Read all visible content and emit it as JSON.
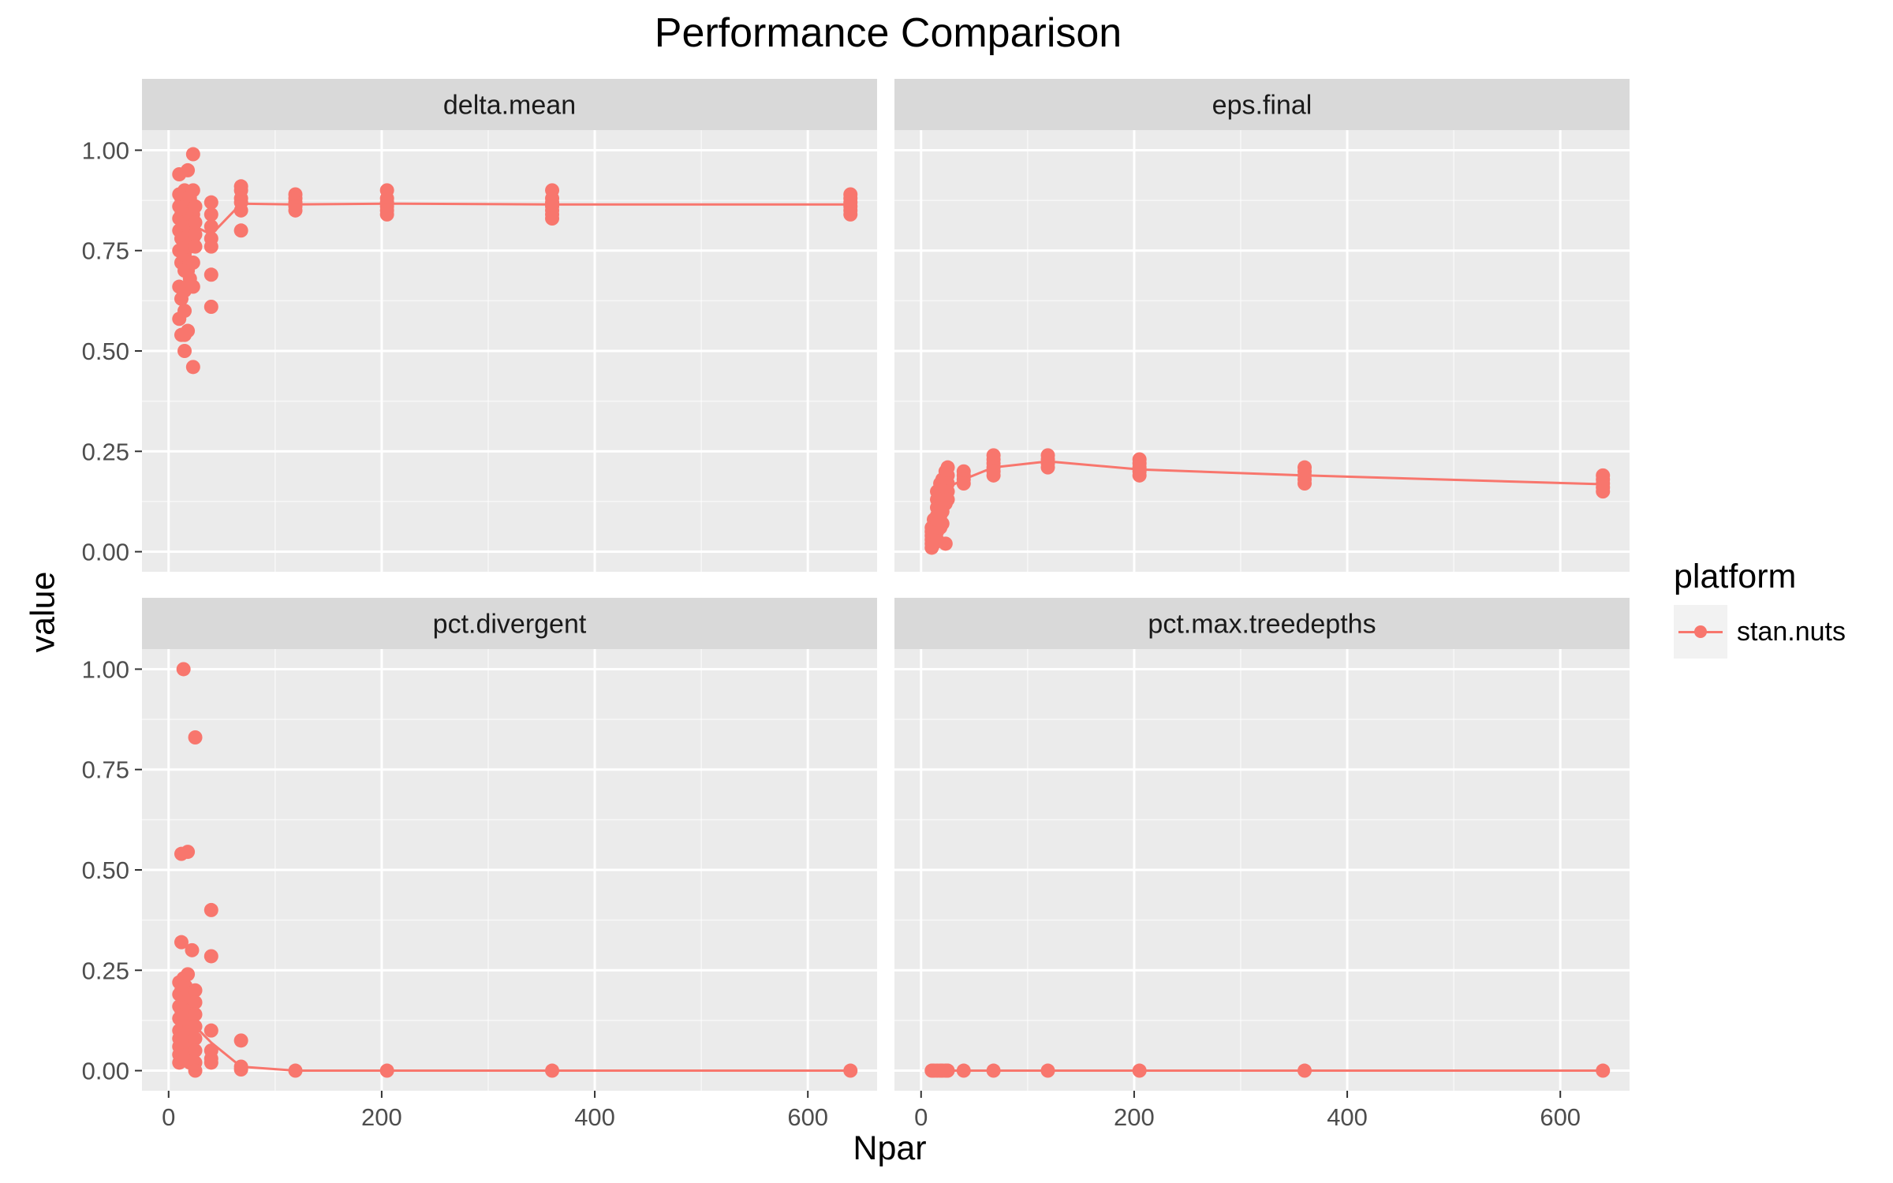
{
  "title": "Performance Comparison",
  "xlabel": "Npar",
  "ylabel": "value",
  "legend": {
    "title": "platform",
    "items": [
      {
        "label": "stan.nuts",
        "color": "#F8766D"
      }
    ]
  },
  "colors": {
    "series": "#F8766D",
    "panel_bg": "#EBEBEB",
    "strip_bg": "#D9D9D9",
    "grid": "#FFFFFF",
    "tick_text": "#4D4D4D"
  },
  "chart_data": {
    "type": "line",
    "facets": [
      "delta.mean",
      "eps.final",
      "pct.divergent",
      "pct.max.treedepths"
    ],
    "xlim": [
      -25,
      665
    ],
    "ylim": [
      -0.05,
      1.05
    ],
    "x_ticks": [
      0,
      200,
      400,
      600
    ],
    "y_ticks": [
      0,
      0.25,
      0.5,
      0.75,
      1
    ],
    "y_tick_labels": [
      "0.00",
      "0.25",
      "0.50",
      "0.75",
      "1.00"
    ],
    "grid": true,
    "legend_position": "right",
    "panels": [
      {
        "label": "delta.mean",
        "line": [
          [
            10,
            0.8
          ],
          [
            15,
            0.79
          ],
          [
            20,
            0.8
          ],
          [
            25,
            0.81
          ],
          [
            40,
            0.79
          ],
          [
            68,
            0.867
          ],
          [
            119,
            0.865
          ],
          [
            205,
            0.867
          ],
          [
            360,
            0.865
          ],
          [
            640,
            0.865
          ]
        ],
        "points": [
          [
            10,
            0.94
          ],
          [
            10,
            0.89
          ],
          [
            10,
            0.86
          ],
          [
            10,
            0.83
          ],
          [
            10,
            0.8
          ],
          [
            10,
            0.75
          ],
          [
            10,
            0.66
          ],
          [
            10,
            0.58
          ],
          [
            12,
            0.54
          ],
          [
            12,
            0.63
          ],
          [
            12,
            0.72
          ],
          [
            12,
            0.78
          ],
          [
            12,
            0.84
          ],
          [
            12,
            0.88
          ],
          [
            15,
            0.5
          ],
          [
            15,
            0.54
          ],
          [
            15,
            0.6
          ],
          [
            15,
            0.65
          ],
          [
            15,
            0.7
          ],
          [
            15,
            0.74
          ],
          [
            15,
            0.78
          ],
          [
            15,
            0.82
          ],
          [
            15,
            0.86
          ],
          [
            15,
            0.9
          ],
          [
            18,
            0.95
          ],
          [
            18,
            0.88
          ],
          [
            18,
            0.82
          ],
          [
            18,
            0.76
          ],
          [
            18,
            0.7
          ],
          [
            18,
            0.66
          ],
          [
            18,
            0.55
          ],
          [
            20,
            0.88
          ],
          [
            20,
            0.84
          ],
          [
            20,
            0.8
          ],
          [
            20,
            0.76
          ],
          [
            20,
            0.72
          ],
          [
            20,
            0.68
          ],
          [
            23,
            0.99
          ],
          [
            23,
            0.9
          ],
          [
            23,
            0.84
          ],
          [
            23,
            0.78
          ],
          [
            23,
            0.72
          ],
          [
            23,
            0.66
          ],
          [
            23,
            0.46
          ],
          [
            25,
            0.86
          ],
          [
            25,
            0.82
          ],
          [
            25,
            0.79
          ],
          [
            25,
            0.76
          ],
          [
            40,
            0.87
          ],
          [
            40,
            0.84
          ],
          [
            40,
            0.81
          ],
          [
            40,
            0.78
          ],
          [
            40,
            0.76
          ],
          [
            40,
            0.69
          ],
          [
            40,
            0.61
          ],
          [
            68,
            0.91
          ],
          [
            68,
            0.9
          ],
          [
            68,
            0.88
          ],
          [
            68,
            0.87
          ],
          [
            68,
            0.85
          ],
          [
            68,
            0.8
          ],
          [
            119,
            0.89
          ],
          [
            119,
            0.88
          ],
          [
            119,
            0.87
          ],
          [
            119,
            0.86
          ],
          [
            119,
            0.85
          ],
          [
            205,
            0.9
          ],
          [
            205,
            0.88
          ],
          [
            205,
            0.87
          ],
          [
            205,
            0.86
          ],
          [
            205,
            0.85
          ],
          [
            205,
            0.84
          ],
          [
            360,
            0.9
          ],
          [
            360,
            0.88
          ],
          [
            360,
            0.87
          ],
          [
            360,
            0.86
          ],
          [
            360,
            0.85
          ],
          [
            360,
            0.84
          ],
          [
            360,
            0.83
          ],
          [
            640,
            0.89
          ],
          [
            640,
            0.88
          ],
          [
            640,
            0.87
          ],
          [
            640,
            0.86
          ],
          [
            640,
            0.85
          ],
          [
            640,
            0.84
          ]
        ]
      },
      {
        "label": "eps.final",
        "line": [
          [
            10,
            0.04
          ],
          [
            15,
            0.1
          ],
          [
            20,
            0.13
          ],
          [
            25,
            0.16
          ],
          [
            40,
            0.18
          ],
          [
            68,
            0.21
          ],
          [
            119,
            0.225
          ],
          [
            205,
            0.205
          ],
          [
            360,
            0.19
          ],
          [
            640,
            0.168
          ]
        ],
        "points": [
          [
            10,
            0.06
          ],
          [
            10,
            0.05
          ],
          [
            10,
            0.04
          ],
          [
            10,
            0.03
          ],
          [
            10,
            0.02
          ],
          [
            10,
            0.01
          ],
          [
            12,
            0.08
          ],
          [
            12,
            0.06
          ],
          [
            12,
            0.04
          ],
          [
            12,
            0.02
          ],
          [
            15,
            0.15
          ],
          [
            15,
            0.13
          ],
          [
            15,
            0.11
          ],
          [
            15,
            0.09
          ],
          [
            15,
            0.07
          ],
          [
            15,
            0.05
          ],
          [
            15,
            0.03
          ],
          [
            18,
            0.17
          ],
          [
            18,
            0.15
          ],
          [
            18,
            0.13
          ],
          [
            18,
            0.11
          ],
          [
            18,
            0.09
          ],
          [
            18,
            0.06
          ],
          [
            20,
            0.18
          ],
          [
            20,
            0.16
          ],
          [
            20,
            0.14
          ],
          [
            20,
            0.12
          ],
          [
            20,
            0.1
          ],
          [
            20,
            0.07
          ],
          [
            23,
            0.2
          ],
          [
            23,
            0.18
          ],
          [
            23,
            0.16
          ],
          [
            23,
            0.14
          ],
          [
            23,
            0.12
          ],
          [
            23,
            0.02
          ],
          [
            25,
            0.21
          ],
          [
            25,
            0.19
          ],
          [
            25,
            0.17
          ],
          [
            25,
            0.15
          ],
          [
            25,
            0.13
          ],
          [
            40,
            0.2
          ],
          [
            40,
            0.19
          ],
          [
            40,
            0.18
          ],
          [
            40,
            0.17
          ],
          [
            68,
            0.24
          ],
          [
            68,
            0.23
          ],
          [
            68,
            0.22
          ],
          [
            68,
            0.21
          ],
          [
            68,
            0.2
          ],
          [
            68,
            0.19
          ],
          [
            119,
            0.24
          ],
          [
            119,
            0.23
          ],
          [
            119,
            0.22
          ],
          [
            119,
            0.21
          ],
          [
            205,
            0.23
          ],
          [
            205,
            0.22
          ],
          [
            205,
            0.21
          ],
          [
            205,
            0.2
          ],
          [
            205,
            0.19
          ],
          [
            360,
            0.21
          ],
          [
            360,
            0.2
          ],
          [
            360,
            0.19
          ],
          [
            360,
            0.18
          ],
          [
            360,
            0.17
          ],
          [
            640,
            0.19
          ],
          [
            640,
            0.18
          ],
          [
            640,
            0.17
          ],
          [
            640,
            0.16
          ],
          [
            640,
            0.15
          ]
        ]
      },
      {
        "label": "pct.divergent",
        "line": [
          [
            10,
            0.12
          ],
          [
            15,
            0.14
          ],
          [
            20,
            0.13
          ],
          [
            25,
            0.11
          ],
          [
            40,
            0.07
          ],
          [
            68,
            0.01
          ],
          [
            119,
            0
          ],
          [
            205,
            0
          ],
          [
            360,
            0
          ],
          [
            640,
            0
          ]
        ],
        "points": [
          [
            10,
            0.22
          ],
          [
            10,
            0.19
          ],
          [
            10,
            0.16
          ],
          [
            10,
            0.13
          ],
          [
            10,
            0.1
          ],
          [
            10,
            0.08
          ],
          [
            10,
            0.06
          ],
          [
            10,
            0.04
          ],
          [
            10,
            0.02
          ],
          [
            12,
            0.54
          ],
          [
            12,
            0.32
          ],
          [
            12,
            0.2
          ],
          [
            12,
            0.15
          ],
          [
            12,
            0.1
          ],
          [
            12,
            0.05
          ],
          [
            12,
            0.03
          ],
          [
            14,
            1.0
          ],
          [
            14,
            0.23
          ],
          [
            14,
            0.18
          ],
          [
            14,
            0.14
          ],
          [
            14,
            0.11
          ],
          [
            14,
            0.08
          ],
          [
            14,
            0.05
          ],
          [
            14,
            0.03
          ],
          [
            16,
            0.21
          ],
          [
            16,
            0.17
          ],
          [
            16,
            0.13
          ],
          [
            16,
            0.1
          ],
          [
            16,
            0.07
          ],
          [
            16,
            0.04
          ],
          [
            18,
            0.545
          ],
          [
            18,
            0.24
          ],
          [
            18,
            0.2
          ],
          [
            18,
            0.16
          ],
          [
            18,
            0.12
          ],
          [
            18,
            0.09
          ],
          [
            18,
            0.06
          ],
          [
            18,
            0.03
          ],
          [
            20,
            0.19
          ],
          [
            20,
            0.15
          ],
          [
            20,
            0.11
          ],
          [
            20,
            0.08
          ],
          [
            20,
            0.05
          ],
          [
            20,
            0.02
          ],
          [
            22,
            0.3
          ],
          [
            22,
            0.18
          ],
          [
            22,
            0.12
          ],
          [
            22,
            0.07
          ],
          [
            22,
            0.03
          ],
          [
            25,
            0.83
          ],
          [
            25,
            0.2
          ],
          [
            25,
            0.17
          ],
          [
            25,
            0.14
          ],
          [
            25,
            0.11
          ],
          [
            25,
            0.08
          ],
          [
            25,
            0.05
          ],
          [
            25,
            0.02
          ],
          [
            25,
            0.0
          ],
          [
            40,
            0.4
          ],
          [
            40,
            0.285
          ],
          [
            40,
            0.1
          ],
          [
            40,
            0.05
          ],
          [
            40,
            0.03
          ],
          [
            40,
            0.02
          ],
          [
            68,
            0.075
          ],
          [
            68,
            0.01
          ],
          [
            68,
            0.003
          ],
          [
            119,
            0
          ],
          [
            205,
            0
          ],
          [
            360,
            0
          ],
          [
            640,
            0
          ]
        ]
      },
      {
        "label": "pct.max.treedepths",
        "line": [
          [
            10,
            0
          ],
          [
            15,
            0
          ],
          [
            20,
            0
          ],
          [
            25,
            0
          ],
          [
            40,
            0
          ],
          [
            68,
            0
          ],
          [
            119,
            0
          ],
          [
            205,
            0
          ],
          [
            360,
            0
          ],
          [
            640,
            0
          ]
        ],
        "points": [
          [
            10,
            0
          ],
          [
            12,
            0
          ],
          [
            15,
            0
          ],
          [
            18,
            0
          ],
          [
            20,
            0
          ],
          [
            23,
            0
          ],
          [
            25,
            0
          ],
          [
            40,
            0
          ],
          [
            68,
            0
          ],
          [
            119,
            0
          ],
          [
            205,
            0
          ],
          [
            360,
            0
          ],
          [
            640,
            0
          ]
        ]
      }
    ]
  }
}
